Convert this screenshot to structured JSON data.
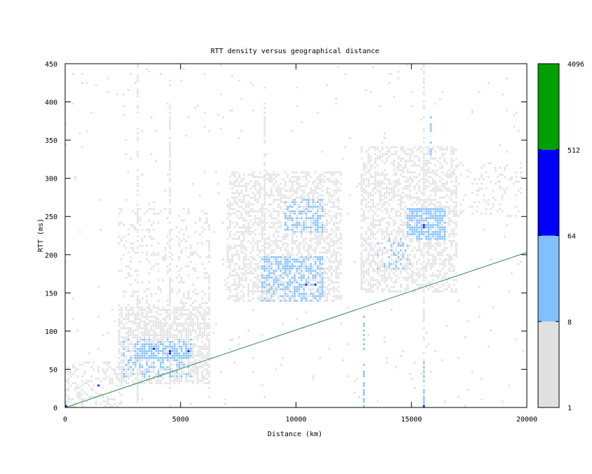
{
  "chart_data": {
    "type": "heatmap",
    "title": "RTT density versus geographical distance",
    "xlabel": "Distance (km)",
    "ylabel": "RTT (ms)",
    "xlim": [
      0,
      20000
    ],
    "ylim": [
      0,
      450
    ],
    "xticks": [
      0,
      5000,
      10000,
      15000,
      20000
    ],
    "yticks": [
      0,
      50,
      100,
      150,
      200,
      250,
      300,
      350,
      400,
      450
    ],
    "bin_size": {
      "distance_km": 100,
      "rtt_ms": 3
    },
    "colorbar": {
      "scale": "log",
      "ticks": [
        "1",
        "8",
        "64",
        "512",
        "4096"
      ],
      "levels": [
        {
          "range": [
            1,
            8
          ],
          "color": "#e0e0e0"
        },
        {
          "range": [
            8,
            64
          ],
          "color": "#80c0ff"
        },
        {
          "range": [
            64,
            512
          ],
          "color": "#0000ff"
        },
        {
          "range": [
            512,
            4096
          ],
          "color": "#00a000"
        }
      ]
    },
    "reference_line": {
      "color": "#2e8b57",
      "points": [
        [
          0,
          0
        ],
        [
          20000,
          203
        ]
      ]
    },
    "density_regions": [
      {
        "distance": [
          0,
          20000
        ],
        "rtt": [
          0,
          450
        ],
        "level": 1,
        "fill": 0.012
      },
      {
        "distance": [
          0,
          2500
        ],
        "rtt": [
          0,
          60
        ],
        "level": 1,
        "fill": 0.3
      },
      {
        "distance": [
          2300,
          6300
        ],
        "rtt": [
          30,
          130
        ],
        "level": 1,
        "fill": 0.6
      },
      {
        "distance": [
          2300,
          6300
        ],
        "rtt": [
          130,
          260
        ],
        "level": 1,
        "fill": 0.15
      },
      {
        "distance": [
          2500,
          5500
        ],
        "rtt": [
          40,
          90
        ],
        "level": 2,
        "fill": 0.3
      },
      {
        "distance": [
          3000,
          5500
        ],
        "rtt": [
          65,
          85
        ],
        "level": 2,
        "fill": 0.6
      },
      {
        "distance": [
          7000,
          12000
        ],
        "rtt": [
          140,
          310
        ],
        "level": 1,
        "fill": 0.45
      },
      {
        "distance": [
          8500,
          11200
        ],
        "rtt": [
          140,
          200
        ],
        "level": 2,
        "fill": 0.45
      },
      {
        "distance": [
          9500,
          11200
        ],
        "rtt": [
          230,
          275
        ],
        "level": 2,
        "fill": 0.4
      },
      {
        "distance": [
          12800,
          17000
        ],
        "rtt": [
          150,
          340
        ],
        "level": 1,
        "fill": 0.45
      },
      {
        "distance": [
          14800,
          16500
        ],
        "rtt": [
          220,
          260
        ],
        "level": 2,
        "fill": 0.7
      },
      {
        "distance": [
          13500,
          15000
        ],
        "rtt": [
          180,
          220
        ],
        "level": 2,
        "fill": 0.2
      },
      {
        "distance": [
          16800,
          19800
        ],
        "rtt": [
          250,
          320
        ],
        "level": 1,
        "fill": 0.15
      }
    ],
    "hotspots": [
      {
        "distance": 4500,
        "rtt": 73,
        "level": 3
      },
      {
        "distance": 4500,
        "rtt": 70,
        "level": 3
      },
      {
        "distance": 5300,
        "rtt": 72,
        "level": 3
      },
      {
        "distance": 3800,
        "rtt": 77,
        "level": 3
      },
      {
        "distance": 1400,
        "rtt": 28,
        "level": 3
      },
      {
        "distance": 10400,
        "rtt": 160,
        "level": 3
      },
      {
        "distance": 10800,
        "rtt": 159,
        "level": 3
      },
      {
        "distance": 15500,
        "rtt": 235,
        "level": 3
      },
      {
        "distance": 15500,
        "rtt": 238,
        "level": 3
      },
      {
        "distance": 0,
        "rtt": 2,
        "level": 3
      },
      {
        "distance": 15500,
        "rtt": 1,
        "level": 3
      }
    ],
    "streaks": [
      {
        "distance": 3100,
        "rtt": [
          0,
          450
        ],
        "level": 1
      },
      {
        "distance": 4500,
        "rtt": [
          0,
          430
        ],
        "level": 1
      },
      {
        "distance": 6200,
        "rtt": [
          0,
          240
        ],
        "level": 1
      },
      {
        "distance": 8600,
        "rtt": [
          150,
          400
        ],
        "level": 1
      },
      {
        "distance": 12900,
        "rtt": [
          0,
          120
        ],
        "level": 2
      },
      {
        "distance": 15500,
        "rtt": [
          0,
          450
        ],
        "level": 1
      },
      {
        "distance": 15500,
        "rtt": [
          0,
          60
        ],
        "level": 2
      },
      {
        "distance": 15800,
        "rtt": [
          330,
          380
        ],
        "level": 2
      }
    ]
  }
}
